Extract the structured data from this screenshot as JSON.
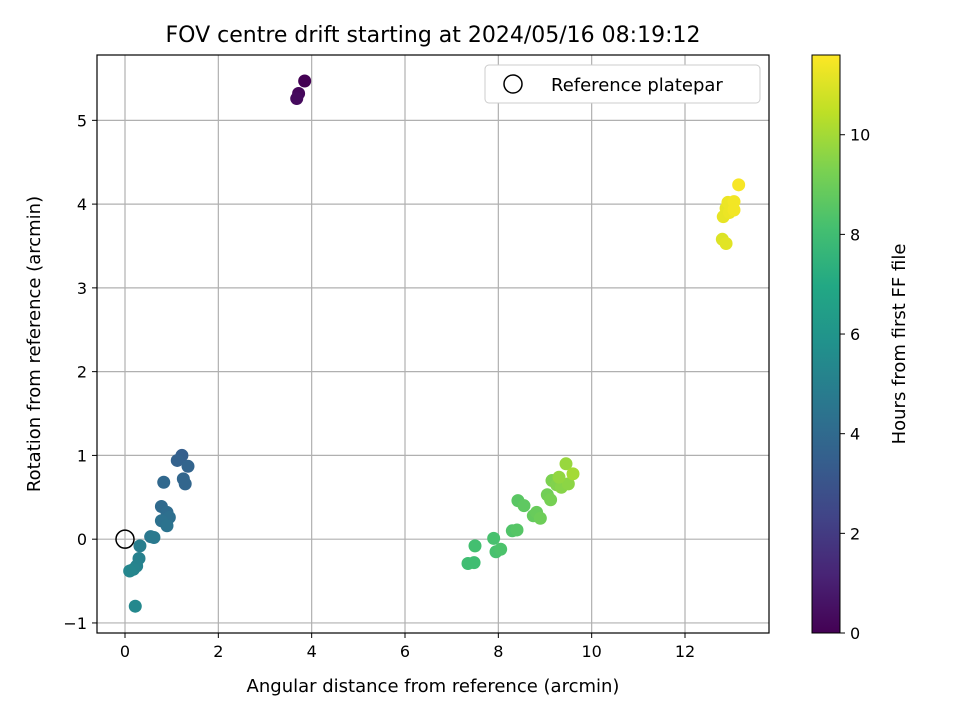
{
  "chart_data": {
    "type": "scatter",
    "title": "FOV centre drift starting at 2024/05/16 08:19:12",
    "xlabel": "Angular distance from reference (arcmin)",
    "ylabel": "Rotation from reference (arcmin)",
    "xlim": [
      -0.6,
      13.8
    ],
    "ylim": [
      -1.12,
      5.78
    ],
    "x_ticks": [
      0,
      2,
      4,
      6,
      8,
      10,
      12
    ],
    "y_ticks": [
      -1,
      0,
      1,
      2,
      3,
      4,
      5
    ],
    "grid": true,
    "legend": {
      "position": "top-right",
      "entries": [
        "Reference platepar"
      ]
    },
    "reference_point": {
      "x": 0,
      "y": 0,
      "label": "Reference platepar"
    },
    "colorbar": {
      "label": "Hours from first FF file",
      "colormap": "viridis",
      "range": [
        0,
        11.6
      ],
      "ticks": [
        0,
        2,
        4,
        6,
        8,
        10
      ]
    },
    "points": [
      {
        "x": 3.85,
        "y": 5.47,
        "hours": 0.0
      },
      {
        "x": 3.72,
        "y": 5.32,
        "hours": 0.2
      },
      {
        "x": 3.68,
        "y": 5.26,
        "hours": 0.3
      },
      {
        "x": 1.22,
        "y": 1.0,
        "hours": 3.5
      },
      {
        "x": 1.12,
        "y": 0.94,
        "hours": 3.6
      },
      {
        "x": 1.35,
        "y": 0.87,
        "hours": 3.7
      },
      {
        "x": 1.25,
        "y": 0.72,
        "hours": 3.8
      },
      {
        "x": 1.29,
        "y": 0.66,
        "hours": 3.8
      },
      {
        "x": 0.83,
        "y": 0.68,
        "hours": 3.9
      },
      {
        "x": 0.78,
        "y": 0.39,
        "hours": 4.0
      },
      {
        "x": 0.9,
        "y": 0.32,
        "hours": 4.1
      },
      {
        "x": 0.95,
        "y": 0.26,
        "hours": 4.2
      },
      {
        "x": 0.78,
        "y": 0.22,
        "hours": 4.3
      },
      {
        "x": 0.9,
        "y": 0.16,
        "hours": 4.4
      },
      {
        "x": 0.55,
        "y": 0.03,
        "hours": 4.6
      },
      {
        "x": 0.62,
        "y": 0.02,
        "hours": 4.7
      },
      {
        "x": 0.32,
        "y": -0.08,
        "hours": 4.9
      },
      {
        "x": 0.3,
        "y": -0.23,
        "hours": 5.0
      },
      {
        "x": 0.25,
        "y": -0.32,
        "hours": 5.1
      },
      {
        "x": 0.18,
        "y": -0.36,
        "hours": 5.2
      },
      {
        "x": 0.1,
        "y": -0.38,
        "hours": 5.3
      },
      {
        "x": 0.22,
        "y": -0.8,
        "hours": 5.4
      },
      {
        "x": 7.35,
        "y": -0.29,
        "hours": 8.0
      },
      {
        "x": 7.48,
        "y": -0.28,
        "hours": 8.0
      },
      {
        "x": 7.5,
        "y": -0.08,
        "hours": 8.1
      },
      {
        "x": 7.9,
        "y": 0.01,
        "hours": 8.2
      },
      {
        "x": 7.95,
        "y": -0.15,
        "hours": 8.2
      },
      {
        "x": 8.05,
        "y": -0.12,
        "hours": 8.3
      },
      {
        "x": 8.3,
        "y": 0.1,
        "hours": 8.4
      },
      {
        "x": 8.4,
        "y": 0.11,
        "hours": 8.5
      },
      {
        "x": 8.42,
        "y": 0.46,
        "hours": 8.6
      },
      {
        "x": 8.55,
        "y": 0.4,
        "hours": 8.7
      },
      {
        "x": 8.75,
        "y": 0.28,
        "hours": 8.8
      },
      {
        "x": 8.82,
        "y": 0.32,
        "hours": 8.9
      },
      {
        "x": 8.9,
        "y": 0.25,
        "hours": 9.0
      },
      {
        "x": 9.05,
        "y": 0.53,
        "hours": 9.1
      },
      {
        "x": 9.12,
        "y": 0.47,
        "hours": 9.2
      },
      {
        "x": 9.15,
        "y": 0.7,
        "hours": 9.3
      },
      {
        "x": 9.25,
        "y": 0.65,
        "hours": 9.4
      },
      {
        "x": 9.35,
        "y": 0.62,
        "hours": 9.5
      },
      {
        "x": 9.5,
        "y": 0.66,
        "hours": 9.6
      },
      {
        "x": 9.3,
        "y": 0.74,
        "hours": 9.7
      },
      {
        "x": 9.45,
        "y": 0.9,
        "hours": 9.8
      },
      {
        "x": 9.6,
        "y": 0.78,
        "hours": 10.0
      },
      {
        "x": 12.8,
        "y": 3.58,
        "hours": 11.0
      },
      {
        "x": 12.88,
        "y": 3.53,
        "hours": 11.1
      },
      {
        "x": 12.82,
        "y": 3.85,
        "hours": 11.2
      },
      {
        "x": 12.88,
        "y": 3.95,
        "hours": 11.2
      },
      {
        "x": 12.95,
        "y": 3.9,
        "hours": 11.3
      },
      {
        "x": 12.92,
        "y": 4.02,
        "hours": 11.3
      },
      {
        "x": 13.05,
        "y": 4.03,
        "hours": 11.4
      },
      {
        "x": 13.05,
        "y": 3.93,
        "hours": 11.4
      },
      {
        "x": 13.15,
        "y": 4.23,
        "hours": 11.5
      }
    ]
  }
}
